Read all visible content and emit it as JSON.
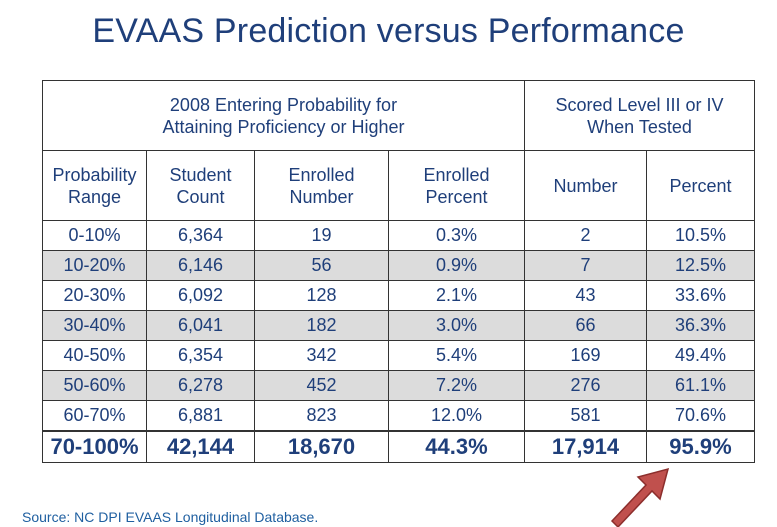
{
  "title": "EVAAS Prediction versus Performance",
  "table": {
    "group_headers": {
      "left": "2008 Entering Probability for\nAttaining Proficiency or Higher",
      "right": "Scored Level III or IV\nWhen Tested"
    },
    "columns": [
      {
        "id": "range",
        "label": "Probability\nRange"
      },
      {
        "id": "count",
        "label": "Student\nCount"
      },
      {
        "id": "enr_num",
        "label": "Enrolled\nNumber"
      },
      {
        "id": "enr_pct",
        "label": "Enrolled\nPercent"
      },
      {
        "id": "number",
        "label": "Number"
      },
      {
        "id": "percent",
        "label": "Percent"
      }
    ],
    "rows": [
      [
        "0-10%",
        "6,364",
        "19",
        "0.3%",
        "2",
        "10.5%"
      ],
      [
        "10-20%",
        "6,146",
        "56",
        "0.9%",
        "7",
        "12.5%"
      ],
      [
        "20-30%",
        "6,092",
        "128",
        "2.1%",
        "43",
        "33.6%"
      ],
      [
        "30-40%",
        "6,041",
        "182",
        "3.0%",
        "66",
        "36.3%"
      ],
      [
        "40-50%",
        "6,354",
        "342",
        "5.4%",
        "169",
        "49.4%"
      ],
      [
        "50-60%",
        "6,278",
        "452",
        "7.2%",
        "276",
        "61.1%"
      ],
      [
        "60-70%",
        "6,881",
        "823",
        "12.0%",
        "581",
        "70.6%"
      ],
      [
        "70-100%",
        "42,144",
        "18,670",
        "44.3%",
        "17,914",
        "95.9%"
      ]
    ],
    "highlight_row_index": 7
  },
  "source": "Source:  NC DPI EVAAS Longitudinal Database.",
  "colors": {
    "text": "#1f3f7a",
    "shade": "#dcdcdc",
    "arrow": "#c0504d",
    "source": "#1f5fa0"
  },
  "icons": {
    "arrow": "arrow-up-right-icon"
  }
}
